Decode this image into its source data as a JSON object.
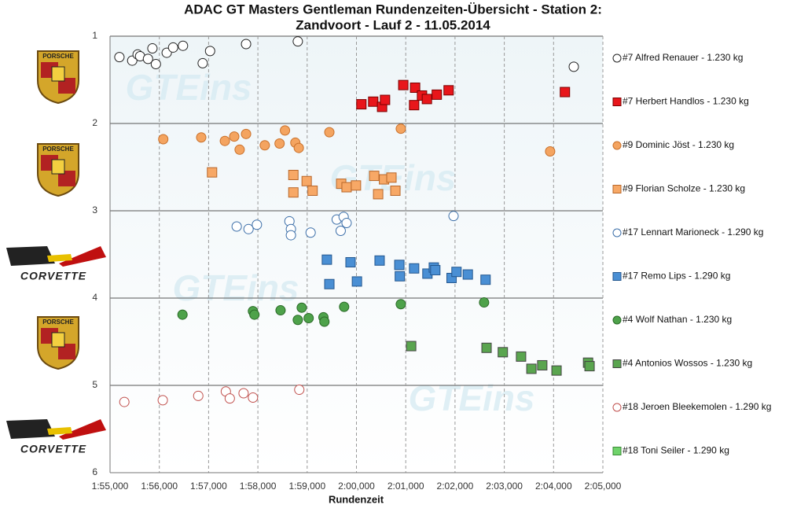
{
  "chart_data": {
    "type": "scatter",
    "title": [
      "ADAC GT Masters Gentleman Rundenzeiten-Übersicht - Station 2:",
      "Zandvoort - Lauf 2 - 11.05.2014"
    ],
    "xlabel": "Rundenzeit",
    "watermark": "GTEins",
    "logos": [
      "PORSCHE",
      "PORSCHE",
      "CORVETTE",
      "PORSCHE",
      "CORVETTE"
    ],
    "xlim": [
      115,
      125
    ],
    "xticks": [
      {
        "value": 115,
        "label": "1:55,000"
      },
      {
        "value": 116,
        "label": "1:56,000"
      },
      {
        "value": 117,
        "label": "1:57,000"
      },
      {
        "value": 118,
        "label": "1:58,000"
      },
      {
        "value": 119,
        "label": "1:59,000"
      },
      {
        "value": 120,
        "label": "2:00,000"
      },
      {
        "value": 121,
        "label": "2:01,000"
      },
      {
        "value": 122,
        "label": "2:02,000"
      },
      {
        "value": 123,
        "label": "2:03,000"
      },
      {
        "value": 124,
        "label": "2:04,000"
      },
      {
        "value": 125,
        "label": "2:05,000"
      }
    ],
    "ylim": [
      1,
      6
    ],
    "y_inverted": true,
    "yticks": [
      1,
      2,
      3,
      4,
      5,
      6
    ],
    "grid": true,
    "legend": "right",
    "series": [
      {
        "name": "#7 Alfred Renauer - 1.230 kg",
        "marker": "circle",
        "color": "#ffffff",
        "edgecolor": "#222222",
        "x": [
          115.19,
          115.45,
          115.56,
          115.61,
          115.77,
          115.93,
          115.86,
          116.15,
          116.28,
          116.48,
          116.88,
          117.03,
          117.76,
          118.81,
          124.41
        ],
        "values": [
          1.24,
          1.28,
          1.21,
          1.23,
          1.26,
          1.32,
          1.14,
          1.19,
          1.13,
          1.11,
          1.31,
          1.17,
          1.09,
          1.06,
          1.35
        ]
      },
      {
        "name": "#7 Herbert Handlos - 1.230 kg",
        "marker": "square",
        "color": "#e8161b",
        "edgecolor": "#7a0000",
        "x": [
          120.1,
          120.34,
          120.52,
          120.58,
          120.95,
          121.19,
          121.17,
          121.33,
          121.43,
          121.63,
          121.87,
          124.23
        ],
        "values": [
          1.78,
          1.75,
          1.81,
          1.73,
          1.56,
          1.59,
          1.79,
          1.68,
          1.72,
          1.67,
          1.62,
          1.64
        ]
      },
      {
        "name": "#9 Dominic Jöst - 1.230 kg",
        "marker": "circle",
        "color": "#f4a460",
        "edgecolor": "#c9702a",
        "x": [
          116.08,
          116.85,
          117.33,
          117.52,
          117.63,
          117.76,
          118.14,
          118.44,
          118.55,
          118.76,
          118.83,
          119.45,
          120.9,
          123.93
        ],
        "values": [
          2.18,
          2.16,
          2.2,
          2.15,
          2.3,
          2.12,
          2.25,
          2.23,
          2.08,
          2.22,
          2.28,
          2.1,
          2.06,
          2.32
        ]
      },
      {
        "name": "#9 Florian Scholze - 1.230 kg",
        "marker": "square",
        "color": "#f7a866",
        "edgecolor": "#b8672a",
        "x": [
          117.07,
          118.72,
          118.72,
          118.99,
          119.11,
          119.69,
          119.8,
          119.99,
          120.36,
          120.44,
          120.56,
          120.71,
          120.79
        ],
        "values": [
          2.56,
          2.79,
          2.59,
          2.66,
          2.77,
          2.69,
          2.73,
          2.71,
          2.6,
          2.81,
          2.64,
          2.62,
          2.77
        ]
      },
      {
        "name": "#17 Lennart Marioneck - 1.290 kg",
        "marker": "circle",
        "color": "#ffffff",
        "edgecolor": "#3b6ea8",
        "x": [
          117.57,
          117.81,
          117.98,
          118.64,
          118.67,
          118.67,
          119.07,
          119.6,
          119.74,
          119.68,
          119.8,
          121.97
        ],
        "values": [
          3.18,
          3.21,
          3.16,
          3.12,
          3.21,
          3.28,
          3.25,
          3.1,
          3.07,
          3.23,
          3.14,
          3.06
        ]
      },
      {
        "name": "#17 Remo Lips - 1.290 kg",
        "marker": "square",
        "color": "#4a8fd4",
        "edgecolor": "#24578f",
        "x": [
          119.4,
          119.45,
          119.88,
          120.01,
          120.47,
          120.87,
          120.88,
          121.17,
          121.44,
          121.57,
          121.6,
          121.93,
          122.03,
          122.26,
          122.62
        ],
        "values": [
          3.56,
          3.84,
          3.59,
          3.81,
          3.57,
          3.62,
          3.75,
          3.66,
          3.72,
          3.65,
          3.68,
          3.77,
          3.7,
          3.73,
          3.79
        ]
      },
      {
        "name": "#4 Wolf Nathan - 1.230 kg",
        "marker": "circle",
        "color": "#4ea24a",
        "edgecolor": "#2a6a27",
        "x": [
          116.47,
          117.9,
          117.93,
          118.46,
          118.81,
          118.89,
          119.03,
          119.33,
          119.35,
          119.75,
          120.9,
          122.59
        ],
        "values": [
          4.19,
          4.15,
          4.19,
          4.14,
          4.25,
          4.11,
          4.23,
          4.22,
          4.27,
          4.1,
          4.07,
          4.05
        ]
      },
      {
        "name": "#4 Antonios Wossos - 1.230 kg",
        "marker": "square",
        "color": "#5aa54f",
        "edgecolor": "#444444",
        "x": [
          121.11,
          122.64,
          122.97,
          123.34,
          123.55,
          123.77,
          124.06,
          124.7,
          124.73
        ],
        "values": [
          4.55,
          4.57,
          4.62,
          4.67,
          4.81,
          4.77,
          4.83,
          4.74,
          4.78
        ]
      },
      {
        "name": "#18 Jeroen Bleekemolen - 1.290 kg",
        "marker": "circle",
        "color": "#ffffff",
        "edgecolor": "#c0504d",
        "x": [
          115.29,
          116.07,
          116.79,
          117.35,
          117.43,
          117.71,
          117.9,
          118.84
        ],
        "values": [
          5.19,
          5.17,
          5.12,
          5.07,
          5.15,
          5.09,
          5.14,
          5.05
        ]
      },
      {
        "name": "#18 Toni Seiler - 1.290 kg",
        "marker": "square",
        "color": "#6fd36a",
        "edgecolor": "#3a8a36",
        "x": [],
        "values": []
      }
    ]
  }
}
